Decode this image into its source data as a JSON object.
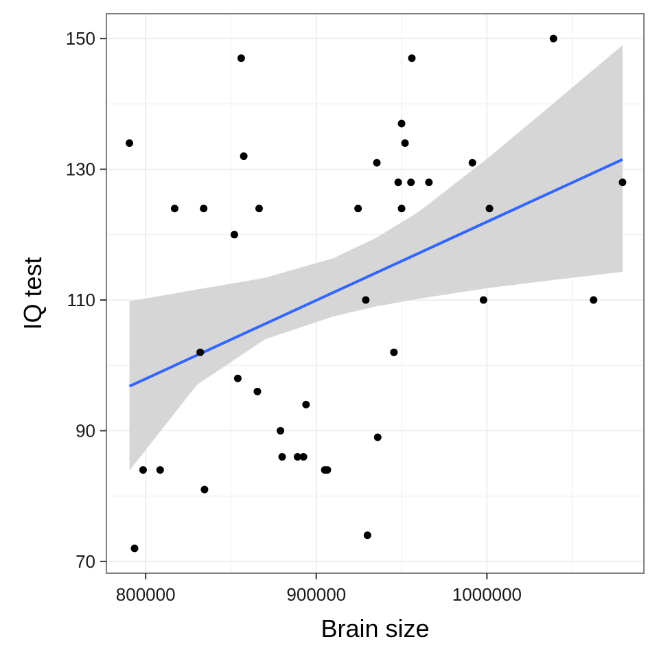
{
  "chart_data": {
    "type": "scatter",
    "title": "",
    "xlabel": "Brain size",
    "ylabel": "IQ test",
    "xlim": [
      777000,
      1092000
    ],
    "ylim": [
      68.2,
      153.8
    ],
    "xticks": [
      800000,
      900000,
      1000000
    ],
    "xtick_labels": [
      "800000",
      "900000",
      "1000000"
    ],
    "yticks": [
      70,
      90,
      110,
      130,
      150
    ],
    "ytick_labels": [
      "70",
      "90",
      "110",
      "130",
      "150"
    ],
    "grid": true,
    "legend": "none",
    "points": [
      {
        "x": 790500,
        "y": 134
      },
      {
        "x": 793500,
        "y": 72
      },
      {
        "x": 798500,
        "y": 84
      },
      {
        "x": 808500,
        "y": 84
      },
      {
        "x": 817000,
        "y": 124
      },
      {
        "x": 832000,
        "y": 102
      },
      {
        "x": 834000,
        "y": 124
      },
      {
        "x": 834500,
        "y": 81
      },
      {
        "x": 852000,
        "y": 120
      },
      {
        "x": 854000,
        "y": 98
      },
      {
        "x": 856000,
        "y": 147
      },
      {
        "x": 857500,
        "y": 132
      },
      {
        "x": 865500,
        "y": 96
      },
      {
        "x": 866500,
        "y": 124
      },
      {
        "x": 879000,
        "y": 90
      },
      {
        "x": 880000,
        "y": 86
      },
      {
        "x": 889000,
        "y": 86
      },
      {
        "x": 892500,
        "y": 86
      },
      {
        "x": 894000,
        "y": 94
      },
      {
        "x": 905000,
        "y": 84
      },
      {
        "x": 906500,
        "y": 84
      },
      {
        "x": 924500,
        "y": 124
      },
      {
        "x": 929000,
        "y": 110
      },
      {
        "x": 930000,
        "y": 74
      },
      {
        "x": 935500,
        "y": 131
      },
      {
        "x": 936000,
        "y": 89
      },
      {
        "x": 945500,
        "y": 102
      },
      {
        "x": 948000,
        "y": 128
      },
      {
        "x": 950000,
        "y": 137
      },
      {
        "x": 950000,
        "y": 124
      },
      {
        "x": 952000,
        "y": 134
      },
      {
        "x": 955500,
        "y": 128
      },
      {
        "x": 956000,
        "y": 147
      },
      {
        "x": 966000,
        "y": 128
      },
      {
        "x": 991500,
        "y": 131
      },
      {
        "x": 998000,
        "y": 110
      },
      {
        "x": 1001500,
        "y": 124
      },
      {
        "x": 1039000,
        "y": 150
      },
      {
        "x": 1062500,
        "y": 110
      },
      {
        "x": 1079500,
        "y": 128
      }
    ],
    "fit_line": {
      "method": "linear regression",
      "x": [
        790500,
        1079500
      ],
      "y": [
        96.8,
        131.5
      ]
    },
    "confidence_band": {
      "x": [
        790500,
        830000,
        870000,
        910000,
        935000,
        960000,
        1000000,
        1040000,
        1079500
      ],
      "lower": [
        83.9,
        97.0,
        104.0,
        107.5,
        109.0,
        110.2,
        111.8,
        113.1,
        114.3
      ],
      "upper": [
        109.8,
        111.6,
        113.4,
        116.4,
        119.5,
        123.5,
        131.6,
        140.3,
        149.0
      ]
    },
    "colors": {
      "points": "#000000",
      "fit_line": "#3366ff",
      "band": "#d6d6d6",
      "grid": "#ebebeb",
      "panel_border": "#7f7f7f"
    }
  }
}
